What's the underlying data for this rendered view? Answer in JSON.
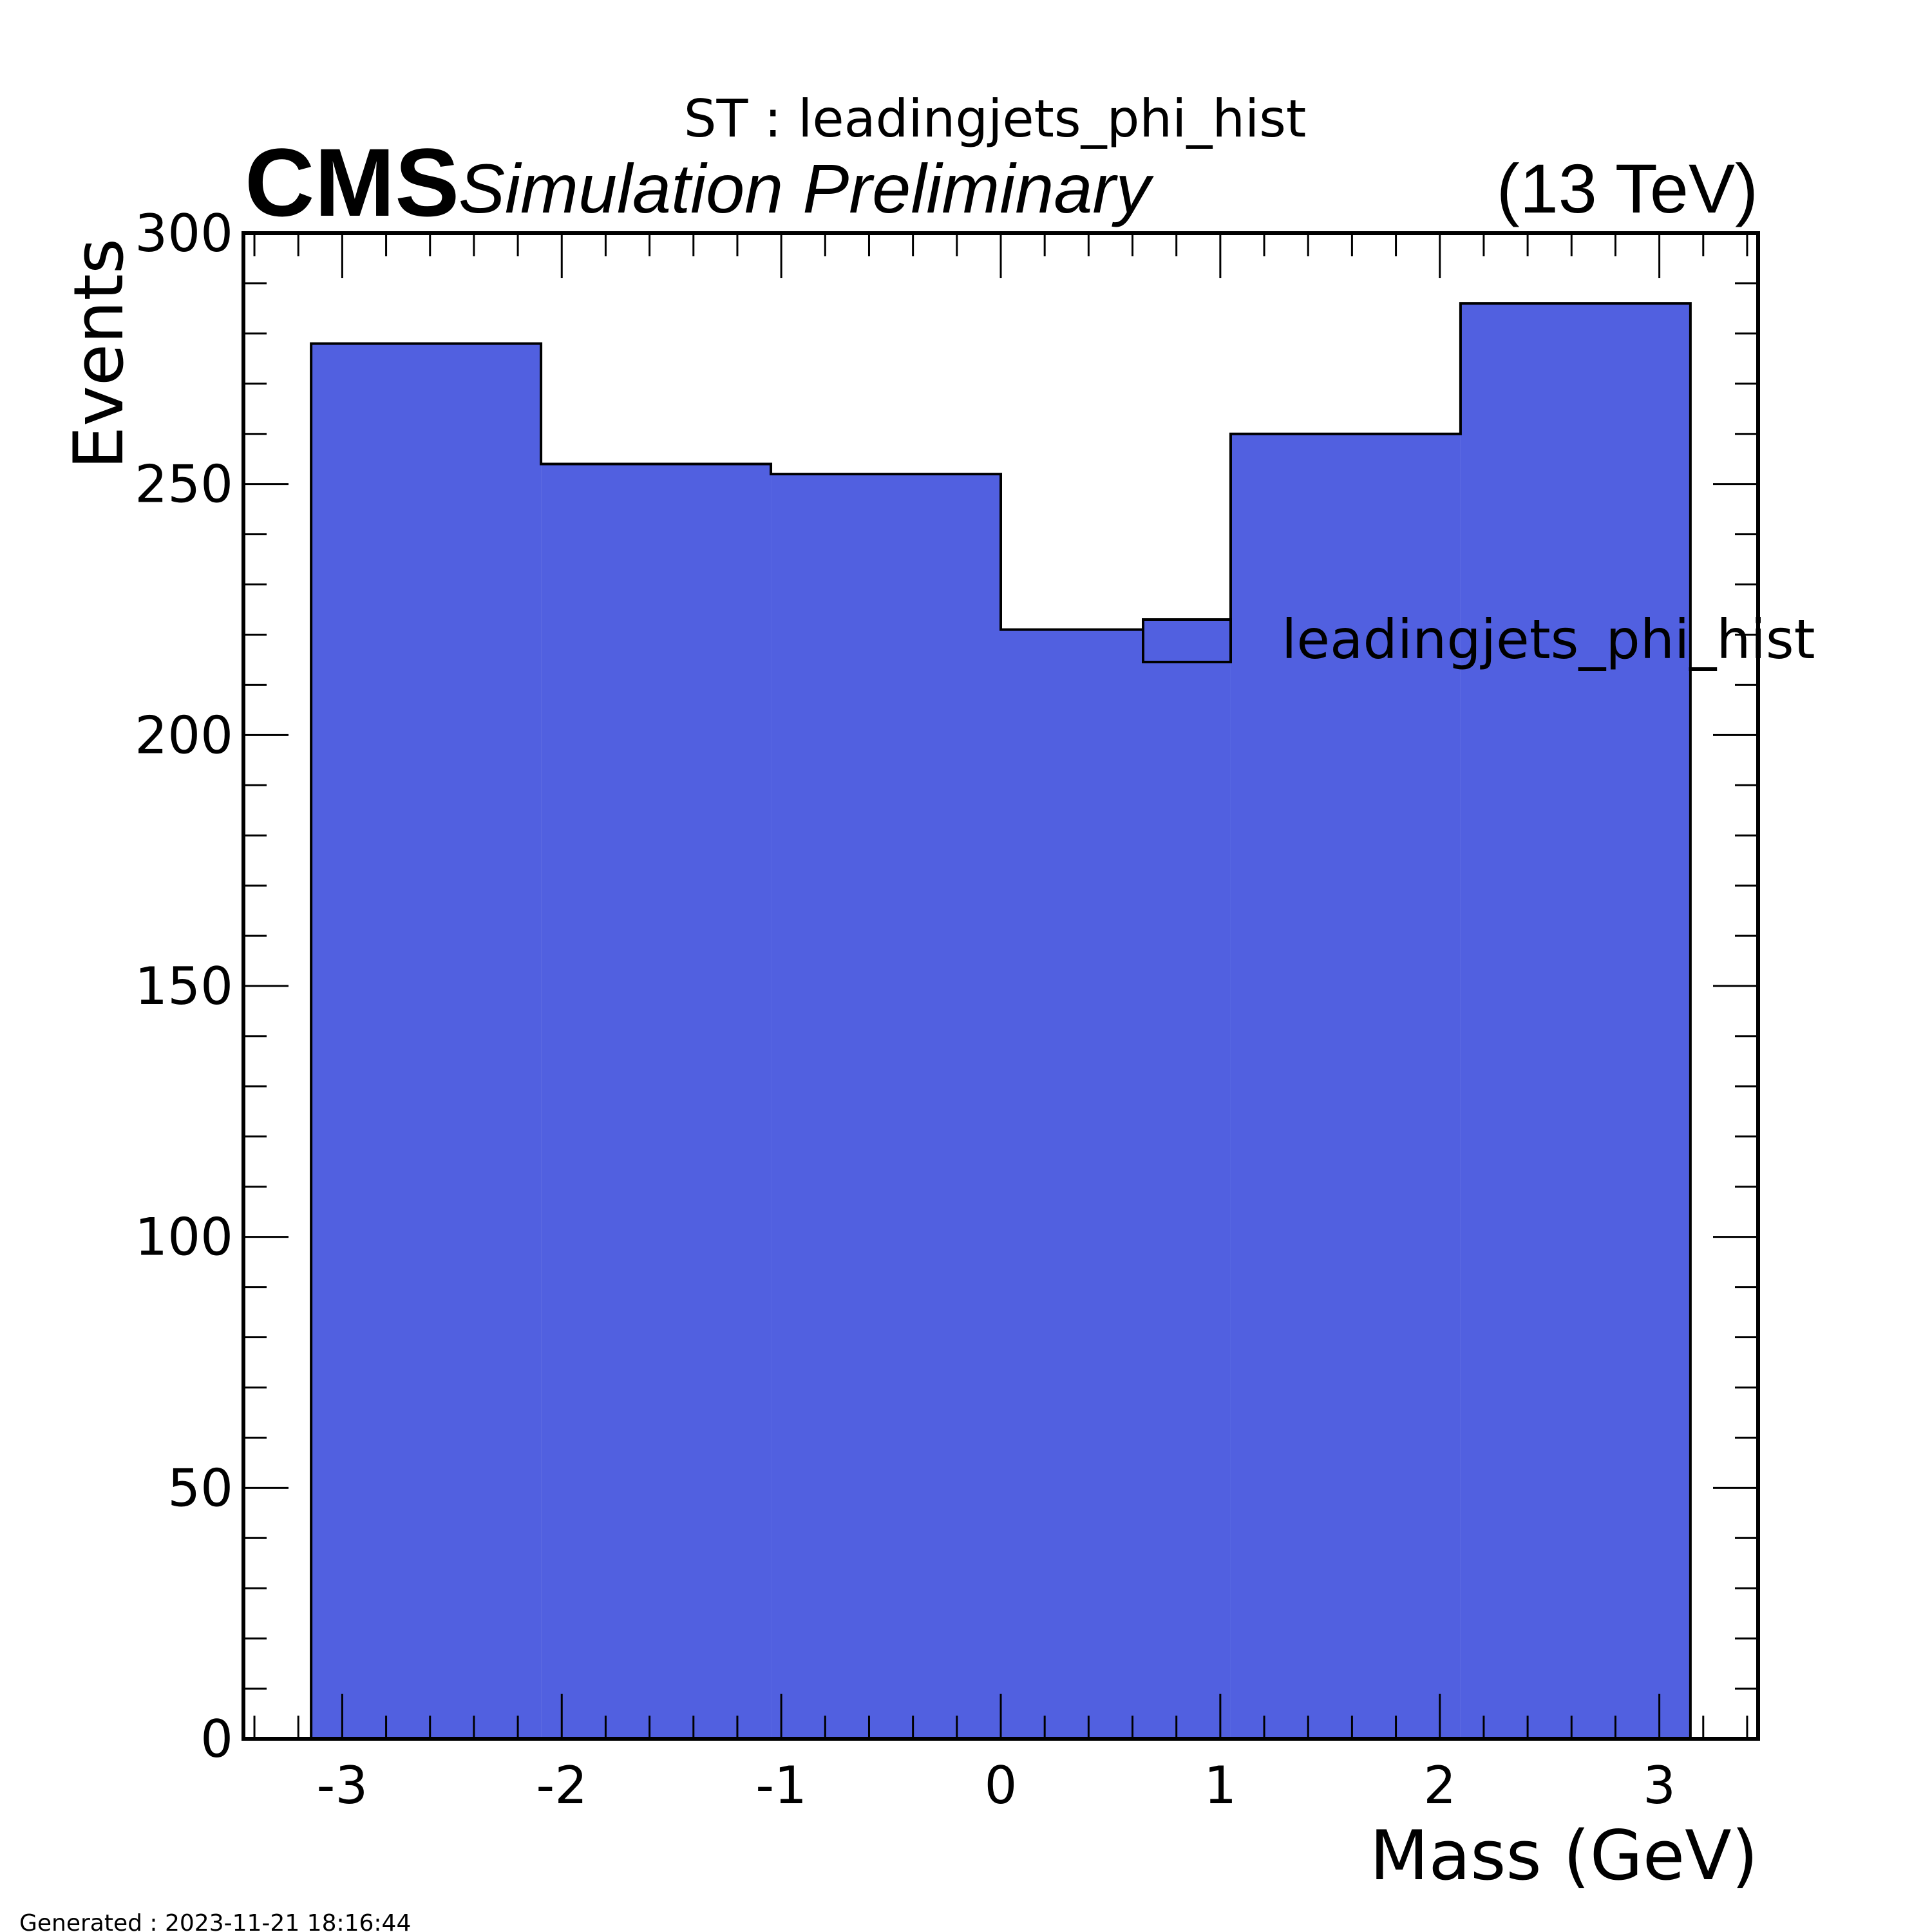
{
  "chart_data": {
    "type": "bar",
    "title": "ST : leadingjets_phi_hist",
    "experiment": "CMS",
    "status": "Simulation Preliminary",
    "energy": "(13 TeV)",
    "xlabel": "Mass (GeV)",
    "ylabel": "Events",
    "xlim": [
      -3.45,
      3.45
    ],
    "ylim": [
      0,
      300
    ],
    "x_ticks": [
      -3,
      -2,
      -1,
      0,
      1,
      2,
      3
    ],
    "y_ticks": [
      0,
      50,
      100,
      150,
      200,
      250,
      300
    ],
    "bin_edges": [
      -3.1416,
      -2.0944,
      -1.0472,
      0.0,
      1.0472,
      2.0944,
      3.1416
    ],
    "series": [
      {
        "name": "leadingjets_phi_hist",
        "values": [
          278,
          254,
          252,
          221,
          260,
          286
        ],
        "color": "#5160e0"
      }
    ],
    "legend_position": "right"
  },
  "footer": {
    "generated": "Generated : 2023-11-21 18:16:44"
  }
}
